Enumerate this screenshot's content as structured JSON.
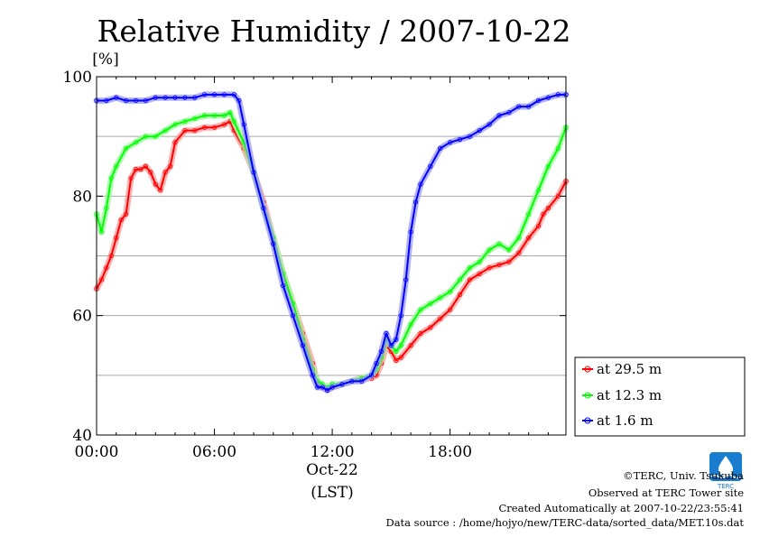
{
  "chart_data": {
    "type": "line",
    "title": "Relative Humidity / 2007-10-22",
    "ylabel": "[%]",
    "xlabel_date": "Oct-22",
    "xlabel_unit": "(LST)",
    "xlim": [
      0,
      23.9
    ],
    "ylim": [
      40,
      100
    ],
    "x_ticks": [
      {
        "x": 0,
        "label": "00:00"
      },
      {
        "x": 6,
        "label": "06:00"
      },
      {
        "x": 12,
        "label": "12:00"
      },
      {
        "x": 18,
        "label": "18:00"
      }
    ],
    "y_ticks": [
      {
        "y": 40,
        "label": "40"
      },
      {
        "y": 60,
        "label": "60"
      },
      {
        "y": 80,
        "label": "80"
      },
      {
        "y": 100,
        "label": "100"
      }
    ],
    "grid": true,
    "legend_position": "right",
    "series": [
      {
        "name": "at 29.5 m",
        "color": "#ff0000",
        "x": [
          0.0,
          0.25,
          0.5,
          0.75,
          1.0,
          1.25,
          1.5,
          1.75,
          2.0,
          2.25,
          2.5,
          2.75,
          3.0,
          3.25,
          3.5,
          3.75,
          4.0,
          4.5,
          5.0,
          5.5,
          6.0,
          6.5,
          6.8,
          7.0,
          7.5,
          8.0,
          8.5,
          9.0,
          9.5,
          10.0,
          10.5,
          11.0,
          11.25,
          11.5,
          11.75,
          12.0,
          12.5,
          13.0,
          13.5,
          14.0,
          14.25,
          14.5,
          14.75,
          15.0,
          15.25,
          15.5,
          16.0,
          16.5,
          17.0,
          17.5,
          18.0,
          18.5,
          19.0,
          19.5,
          20.0,
          20.5,
          21.0,
          21.5,
          22.0,
          22.5,
          22.75,
          23.0,
          23.5,
          23.9
        ],
        "y": [
          64.5,
          66,
          68,
          70,
          73,
          76,
          77,
          83,
          84.5,
          84.5,
          85,
          84,
          82,
          81,
          84,
          85,
          89,
          91,
          91,
          91.5,
          91.5,
          92,
          92.5,
          91,
          88,
          84,
          79,
          73,
          67,
          62,
          57,
          52,
          48.5,
          48,
          47.5,
          48,
          48.5,
          49,
          49.5,
          49.5,
          50,
          52,
          55,
          54,
          52.5,
          53,
          55,
          57,
          58,
          59.5,
          61,
          63.5,
          66,
          67,
          68,
          68.5,
          69,
          70.5,
          73,
          75,
          77,
          78,
          80,
          82.5
        ]
      },
      {
        "name": "at 12.3 m",
        "color": "#00ff00",
        "x": [
          0.0,
          0.25,
          0.5,
          0.75,
          1.0,
          1.5,
          2.0,
          2.5,
          3.0,
          3.5,
          4.0,
          4.5,
          5.0,
          5.5,
          6.0,
          6.5,
          6.8,
          7.0,
          7.5,
          8.0,
          8.5,
          9.0,
          9.5,
          10.0,
          10.5,
          11.0,
          11.25,
          11.5,
          11.75,
          12.0,
          12.5,
          13.0,
          13.5,
          14.0,
          14.25,
          14.5,
          14.75,
          15.0,
          15.25,
          15.5,
          16.0,
          16.5,
          17.0,
          17.5,
          18.0,
          18.5,
          19.0,
          19.5,
          20.0,
          20.5,
          21.0,
          21.5,
          22.0,
          22.5,
          23.0,
          23.5,
          23.9
        ],
        "y": [
          77,
          74,
          78,
          83,
          85,
          88,
          89,
          90,
          90,
          91,
          92,
          92.5,
          93,
          93.5,
          93.5,
          93.5,
          94,
          92.5,
          89,
          84,
          78,
          73,
          67,
          62,
          56,
          51,
          49,
          48.5,
          48,
          48.5,
          48.5,
          49,
          49.5,
          50,
          51,
          53,
          56,
          55,
          54,
          55,
          58.5,
          61,
          62,
          63,
          64,
          66,
          68,
          69,
          71,
          72,
          71,
          73,
          77,
          81,
          85,
          88,
          91.5
        ]
      },
      {
        "name": "at 1.6 m",
        "color": "#0000ff",
        "x": [
          0.0,
          0.5,
          1.0,
          1.5,
          2.0,
          2.5,
          3.0,
          3.5,
          4.0,
          4.5,
          5.0,
          5.5,
          6.0,
          6.5,
          7.0,
          7.25,
          7.5,
          8.0,
          8.5,
          9.0,
          9.5,
          10.0,
          10.5,
          11.0,
          11.25,
          11.5,
          11.75,
          12.0,
          12.5,
          13.0,
          13.5,
          14.0,
          14.25,
          14.5,
          14.75,
          15.0,
          15.25,
          15.5,
          15.75,
          16.0,
          16.25,
          16.5,
          17.0,
          17.5,
          18.0,
          18.5,
          19.0,
          19.5,
          20.0,
          20.5,
          21.0,
          21.5,
          22.0,
          22.5,
          23.0,
          23.5,
          23.9
        ],
        "y": [
          96,
          96,
          96.5,
          96,
          96,
          96,
          96.5,
          96.5,
          96.5,
          96.5,
          96.5,
          97,
          97,
          97,
          97,
          96,
          92,
          84,
          78,
          72,
          65,
          60,
          55,
          50,
          48,
          48,
          47.5,
          48,
          48.5,
          49,
          49,
          50,
          52,
          54,
          57,
          55,
          56,
          60,
          66,
          74,
          79,
          82,
          85,
          88,
          89,
          89.5,
          90,
          91,
          92,
          93.5,
          94,
          95,
          95,
          96,
          96.5,
          97,
          97
        ]
      }
    ]
  },
  "legend": {
    "items": [
      {
        "label": "at 29.5 m",
        "color": "#ff0000"
      },
      {
        "label": "at 12.3 m",
        "color": "#00ff00"
      },
      {
        "label": "at 1.6 m",
        "color": "#0000ff"
      }
    ]
  },
  "footer": {
    "logo_text": "TERC",
    "copyright": "©TERC, Univ. Tsukuba",
    "site": "Observed at TERC Tower site",
    "created": "Created Automatically at 2007-10-22/23:55:41",
    "source": "Data source : /home/hojyo/new/TERC-data/sorted_data/MET.10s.dat"
  }
}
